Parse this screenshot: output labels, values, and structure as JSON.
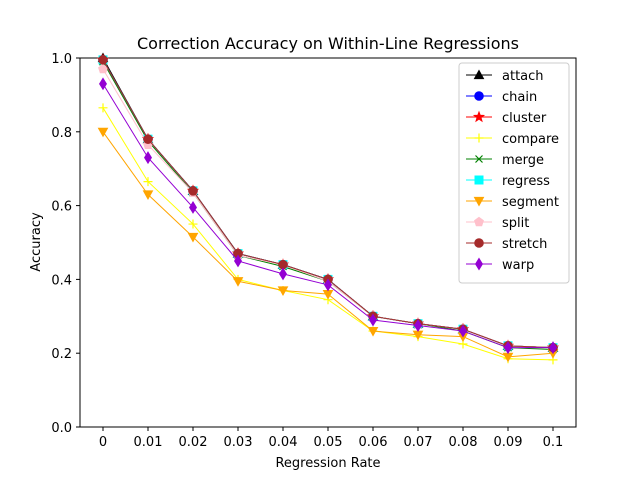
{
  "chart_data": {
    "type": "line",
    "title": "Correction Accuracy on Within-Line Regressions",
    "xlabel": "Regression Rate",
    "ylabel": "Accuracy",
    "x": [
      0,
      0.01,
      0.02,
      0.03,
      0.04,
      0.05,
      0.06,
      0.07,
      0.08,
      0.09,
      0.1
    ],
    "x_tick_labels": [
      "0",
      "0.01",
      "0.02",
      "0.03",
      "0.04",
      "0.05",
      "0.06",
      "0.07",
      "0.08",
      "0.09",
      "0.1"
    ],
    "ylim": [
      0.0,
      1.0
    ],
    "y_ticks": [
      0.0,
      0.2,
      0.4,
      0.6,
      0.8,
      1.0
    ],
    "y_tick_labels": [
      "0.0",
      "0.2",
      "0.4",
      "0.6",
      "0.8",
      "1.0"
    ],
    "grid": false,
    "legend_position": "top-right",
    "series": [
      {
        "name": "attach",
        "color": "#000000",
        "marker": "triangle-up",
        "values": [
          1.0,
          0.78,
          0.64,
          0.47,
          0.44,
          0.4,
          0.3,
          0.28,
          0.265,
          0.22,
          0.215
        ]
      },
      {
        "name": "chain",
        "color": "#0000ff",
        "marker": "circle",
        "values": [
          0.995,
          0.78,
          0.64,
          0.47,
          0.44,
          0.4,
          0.3,
          0.28,
          0.265,
          0.22,
          0.215
        ]
      },
      {
        "name": "cluster",
        "color": "#ff0000",
        "marker": "star",
        "values": [
          0.995,
          0.78,
          0.64,
          0.47,
          0.44,
          0.4,
          0.3,
          0.28,
          0.265,
          0.22,
          0.215
        ]
      },
      {
        "name": "compare",
        "color": "#ffff00",
        "marker": "plus",
        "values": [
          0.865,
          0.665,
          0.55,
          0.4,
          0.37,
          0.345,
          0.26,
          0.245,
          0.225,
          0.185,
          0.182
        ]
      },
      {
        "name": "merge",
        "color": "#008000",
        "marker": "x",
        "values": [
          0.99,
          0.775,
          0.635,
          0.465,
          0.435,
          0.395,
          0.3,
          0.28,
          0.26,
          0.215,
          0.21
        ]
      },
      {
        "name": "regress",
        "color": "#00ffff",
        "marker": "square",
        "values": [
          0.995,
          0.78,
          0.64,
          0.47,
          0.44,
          0.4,
          0.3,
          0.28,
          0.265,
          0.22,
          0.215
        ]
      },
      {
        "name": "segment",
        "color": "#ffa500",
        "marker": "triangle-down",
        "values": [
          0.8,
          0.63,
          0.515,
          0.395,
          0.37,
          0.36,
          0.26,
          0.25,
          0.245,
          0.19,
          0.2
        ]
      },
      {
        "name": "split",
        "color": "#ffc0cb",
        "marker": "pentagon",
        "values": [
          0.97,
          0.765,
          0.635,
          0.465,
          0.44,
          0.395,
          0.3,
          0.28,
          0.265,
          0.22,
          0.215
        ]
      },
      {
        "name": "stretch",
        "color": "#a52a2a",
        "marker": "circle",
        "values": [
          0.995,
          0.78,
          0.64,
          0.47,
          0.44,
          0.4,
          0.3,
          0.28,
          0.265,
          0.22,
          0.215
        ]
      },
      {
        "name": "warp",
        "color": "#9400d3",
        "marker": "thin-diamond",
        "values": [
          0.93,
          0.73,
          0.595,
          0.45,
          0.415,
          0.385,
          0.29,
          0.275,
          0.26,
          0.215,
          0.215
        ]
      }
    ]
  }
}
